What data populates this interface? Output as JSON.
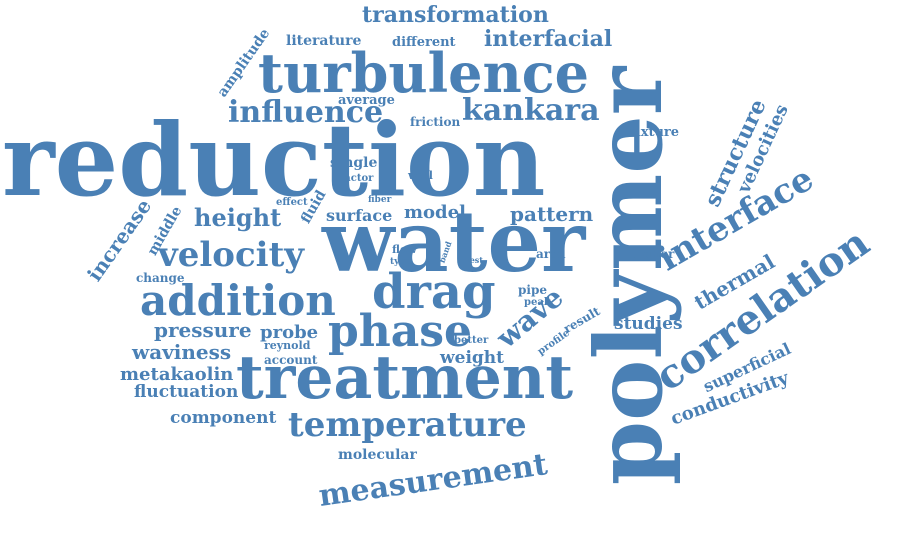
{
  "colors": {
    "word": "#4a80b5",
    "background": "#ffffff"
  },
  "words": [
    "reduction",
    "polymer",
    "water",
    "treatment",
    "turbulence",
    "drag",
    "addition",
    "phase",
    "correlation",
    "interface",
    "velocity",
    "kankara",
    "temperature",
    "measurement",
    "influence",
    "transformation",
    "interfacial",
    "height",
    "pattern",
    "model",
    "surface",
    "wave",
    "structure",
    "velocities",
    "thermal",
    "pressure",
    "probe",
    "waviness",
    "metakaolin",
    "fluctuation",
    "component",
    "weight",
    "studies",
    "superficial",
    "conductivity",
    "literature",
    "different",
    "amplitude",
    "average",
    "friction",
    "mixture",
    "single",
    "factor",
    "wall",
    "fluid",
    "effect",
    "fiber",
    "increase",
    "middle",
    "change",
    "flow",
    "type",
    "band",
    "test",
    "area",
    "higher",
    "pipe",
    "peak",
    "result",
    "profile",
    "better",
    "reynold",
    "account",
    "molecular"
  ]
}
